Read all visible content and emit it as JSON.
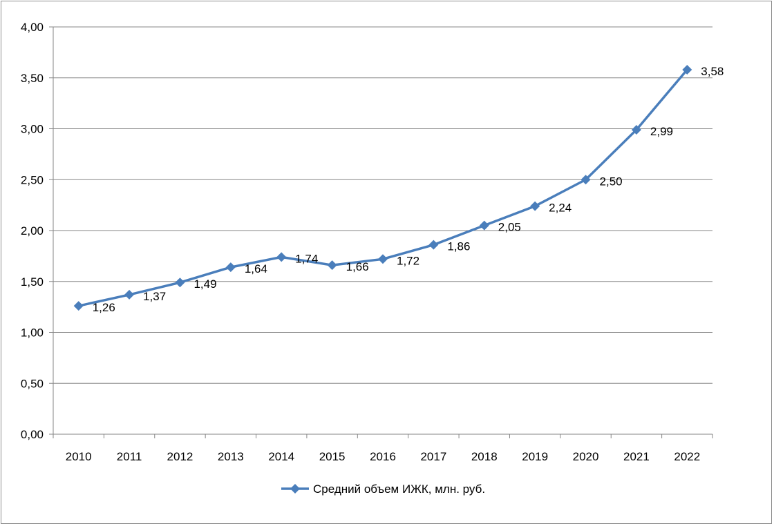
{
  "chart_data": {
    "type": "line",
    "title": "",
    "xlabel": "",
    "ylabel": "",
    "categories": [
      "2010",
      "2011",
      "2012",
      "2013",
      "2014",
      "2015",
      "2016",
      "2017",
      "2018",
      "2019",
      "2020",
      "2021",
      "2022"
    ],
    "series": [
      {
        "name": "Средний объем ИЖК, млн. руб.",
        "values": [
          1.26,
          1.37,
          1.49,
          1.64,
          1.74,
          1.66,
          1.72,
          1.86,
          2.05,
          2.24,
          2.5,
          2.99,
          3.58
        ],
        "labels": [
          "1,26",
          "1,37",
          "1,49",
          "1,64",
          "1,74",
          "1,66",
          "1,72",
          "1,86",
          "2,05",
          "2,24",
          "2,50",
          "2,99",
          "3,58"
        ],
        "color": "#4a7ebb",
        "marker": "diamond"
      }
    ],
    "ylim": [
      0,
      4
    ],
    "yticks": [
      0,
      0.5,
      1,
      1.5,
      2,
      2.5,
      3,
      3.5,
      4
    ],
    "ytick_labels": [
      "0,00",
      "0,50",
      "1,00",
      "1,50",
      "2,00",
      "2,50",
      "3,00",
      "3,50",
      "4,00"
    ],
    "grid": true,
    "legend_position": "bottom",
    "colors": {
      "line": "#4a7ebb",
      "grid": "#868686",
      "axis": "#868686"
    }
  }
}
